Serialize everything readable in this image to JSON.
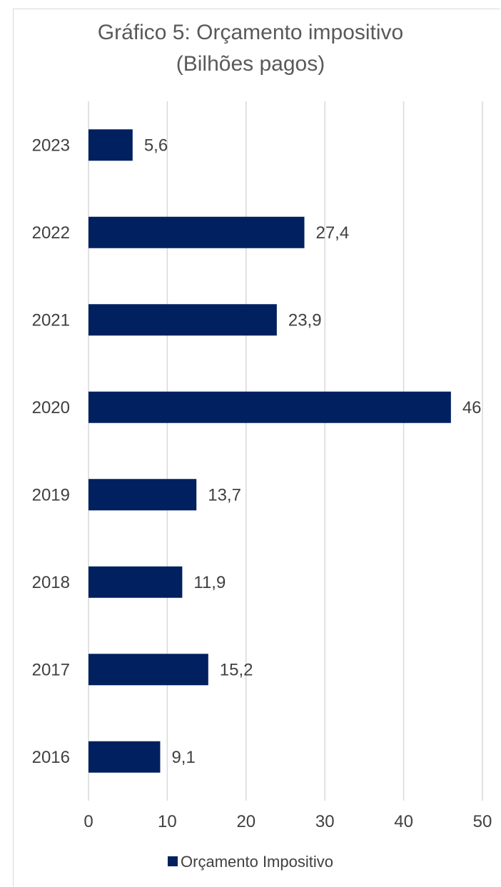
{
  "chart_data": {
    "type": "bar",
    "orientation": "horizontal",
    "title_line1": "Gráfico 5: Orçamento impositivo",
    "title_line2": "(Bilhões pagos)",
    "categories": [
      "2023",
      "2022",
      "2021",
      "2020",
      "2019",
      "2018",
      "2017",
      "2016"
    ],
    "series": [
      {
        "name": "Orçamento Impositivo",
        "values": [
          5.6,
          27.4,
          23.9,
          46,
          13.7,
          11.9,
          15.2,
          9.1
        ],
        "labels": [
          "5,6",
          "27,4",
          "23,9",
          "46",
          "13,7",
          "11,9",
          "15,2",
          "9,1"
        ]
      }
    ],
    "xlim": [
      0,
      50
    ],
    "x_ticks": [
      0,
      10,
      20,
      30,
      40,
      50
    ],
    "grid": "vertical",
    "legend_position": "bottom",
    "colors": {
      "bar": "#002060",
      "grid": "#d9d9d9",
      "text": "#404040",
      "title": "#595959"
    }
  }
}
